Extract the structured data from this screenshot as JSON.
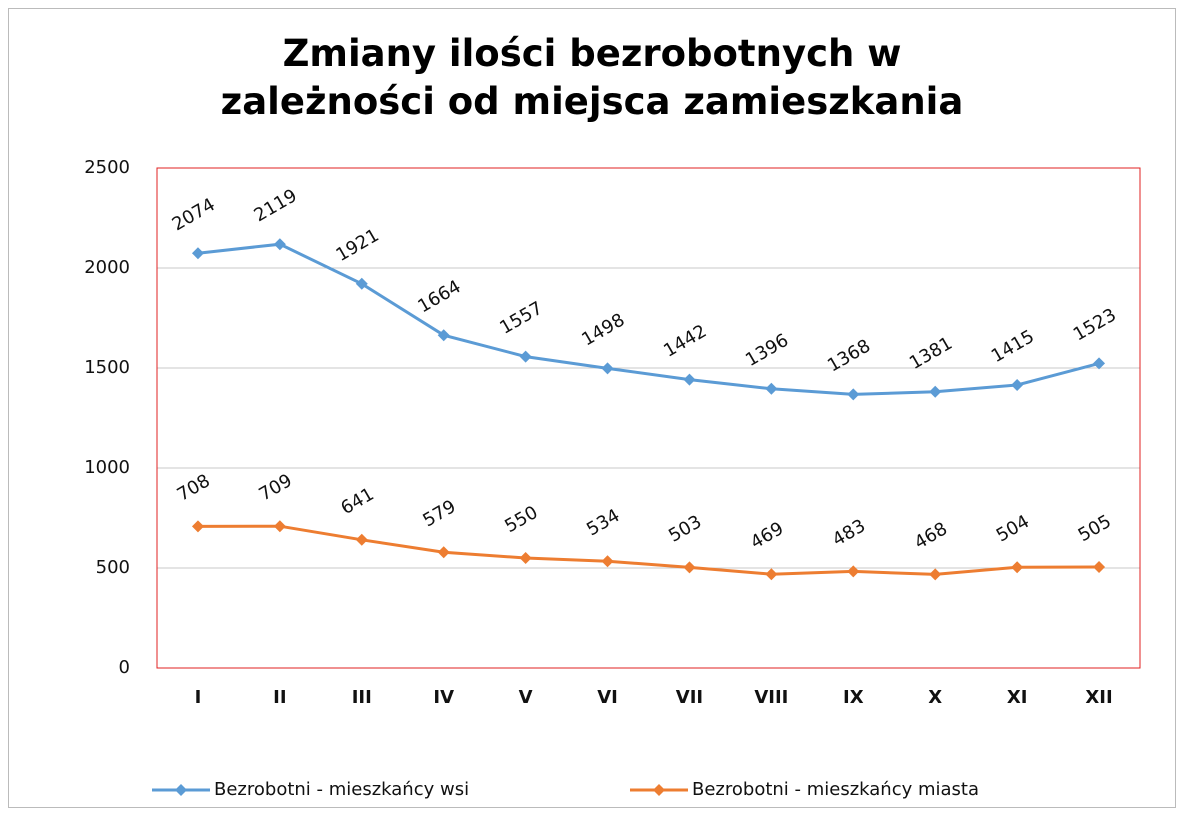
{
  "chart_data": {
    "type": "line",
    "title": "Zmiany ilości bezrobotnych w zależności od miejsca zamieszkania",
    "categories": [
      "I",
      "II",
      "III",
      "IV",
      "V",
      "VI",
      "VII",
      "VIII",
      "IX",
      "X",
      "XI",
      "XII"
    ],
    "series": [
      {
        "name": "Bezrobotni - mieszkańcy wsi",
        "color": "#5b9bd5",
        "values": [
          2074,
          2119,
          1921,
          1664,
          1557,
          1498,
          1442,
          1396,
          1368,
          1381,
          1415,
          1523
        ]
      },
      {
        "name": "Bezrobotni - mieszkańcy miasta",
        "color": "#ed7d31",
        "values": [
          708,
          709,
          641,
          579,
          550,
          534,
          503,
          469,
          483,
          468,
          504,
          505
        ]
      }
    ],
    "ylim": [
      0,
      2500
    ],
    "yticks": [
      0,
      500,
      1000,
      1500,
      2000,
      2500
    ],
    "grid": true,
    "legend": "bottom"
  }
}
